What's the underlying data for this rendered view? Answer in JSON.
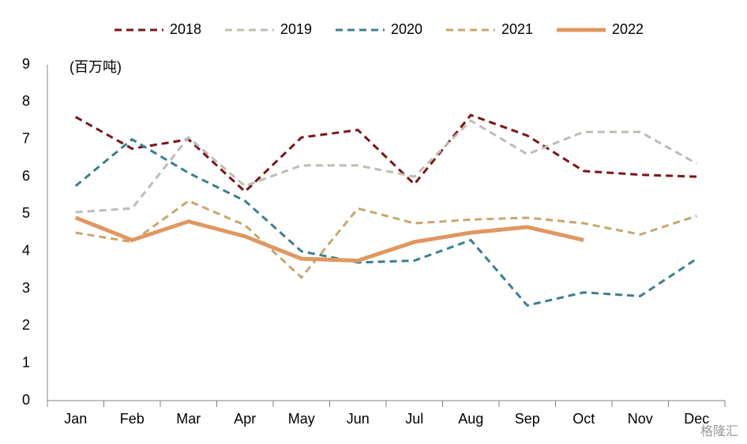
{
  "chart_data": {
    "type": "line",
    "y_label": "(百万吨)",
    "watermark": "格隆汇",
    "categories": [
      "Jan",
      "Feb",
      "Mar",
      "Apr",
      "May",
      "Jun",
      "Jul",
      "Aug",
      "Sep",
      "Oct",
      "Nov",
      "Dec"
    ],
    "series": [
      {
        "name": "2018",
        "color": "#7b1416",
        "dashed": true,
        "values": [
          7.6,
          6.75,
          7.0,
          5.6,
          7.05,
          7.25,
          5.8,
          7.65,
          7.1,
          6.15,
          6.05,
          6.0
        ]
      },
      {
        "name": "2019",
        "color": "#bfbcb4",
        "dashed": true,
        "values": [
          5.05,
          5.15,
          7.05,
          5.75,
          6.3,
          6.3,
          6.0,
          7.5,
          6.6,
          7.2,
          7.2,
          6.35
        ]
      },
      {
        "name": "2020",
        "color": "#3a7f8f",
        "dashed": true,
        "values": [
          5.75,
          7.0,
          6.1,
          5.35,
          4.0,
          3.7,
          3.75,
          4.3,
          2.55,
          2.9,
          2.8,
          3.8
        ]
      },
      {
        "name": "2021",
        "color": "#c9a66b",
        "dashed": true,
        "values": [
          4.5,
          4.25,
          5.35,
          4.7,
          3.3,
          5.15,
          4.75,
          4.85,
          4.9,
          4.75,
          4.45,
          4.95
        ]
      },
      {
        "name": "2022",
        "color": "#e0975f",
        "dashed": false,
        "values": [
          4.9,
          4.3,
          4.8,
          4.4,
          3.8,
          3.75,
          4.25,
          4.5,
          4.65,
          4.3,
          null,
          null
        ]
      }
    ],
    "ylim": [
      0,
      9
    ],
    "yticks": [
      0,
      1,
      2,
      3,
      4,
      5,
      6,
      7,
      8,
      9
    ],
    "grid": false,
    "legend": "top"
  }
}
